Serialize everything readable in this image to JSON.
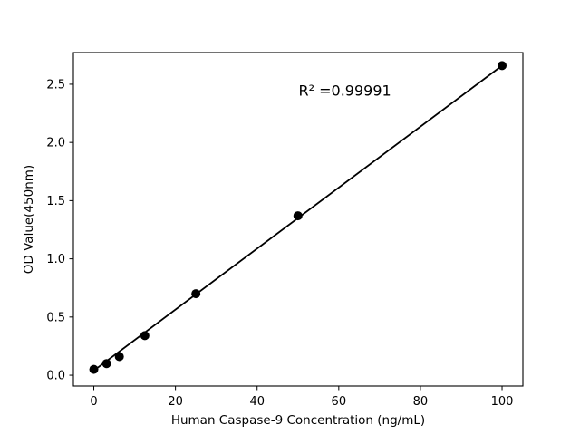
{
  "figure": {
    "background_color": "#ffffff",
    "foreground_color": "#000000"
  },
  "chart_data": {
    "type": "scatter",
    "title": "",
    "xlabel": "Human Caspase-9 Concentration (ng/mL)",
    "ylabel": "OD Value(450nm)",
    "x": [
      0,
      3.125,
      6.25,
      12.5,
      25,
      50,
      100
    ],
    "y": [
      0.05,
      0.1,
      0.16,
      0.34,
      0.7,
      1.37,
      2.66
    ],
    "fit_line": {
      "x1": 0,
      "y1": 0.04,
      "x2": 100,
      "y2": 2.66
    },
    "annotation": {
      "text": "R² =0.99991",
      "x": 61.5,
      "y": 2.44
    },
    "xticks": {
      "values": [
        0,
        20,
        40,
        60,
        80,
        100
      ],
      "labels": [
        "0",
        "20",
        "40",
        "60",
        "80",
        "100"
      ]
    },
    "yticks": {
      "values": [
        0,
        0.5,
        1.0,
        1.5,
        2.0,
        2.5
      ],
      "labels": [
        "0.0",
        "0.5",
        "1.0",
        "1.5",
        "2.0",
        "2.5"
      ]
    },
    "xlim": [
      -5,
      105.1
    ],
    "ylim": [
      -0.093,
      2.772
    ],
    "grid": false,
    "legend": null,
    "marker_color": "#000000",
    "line_color": "#000000"
  }
}
